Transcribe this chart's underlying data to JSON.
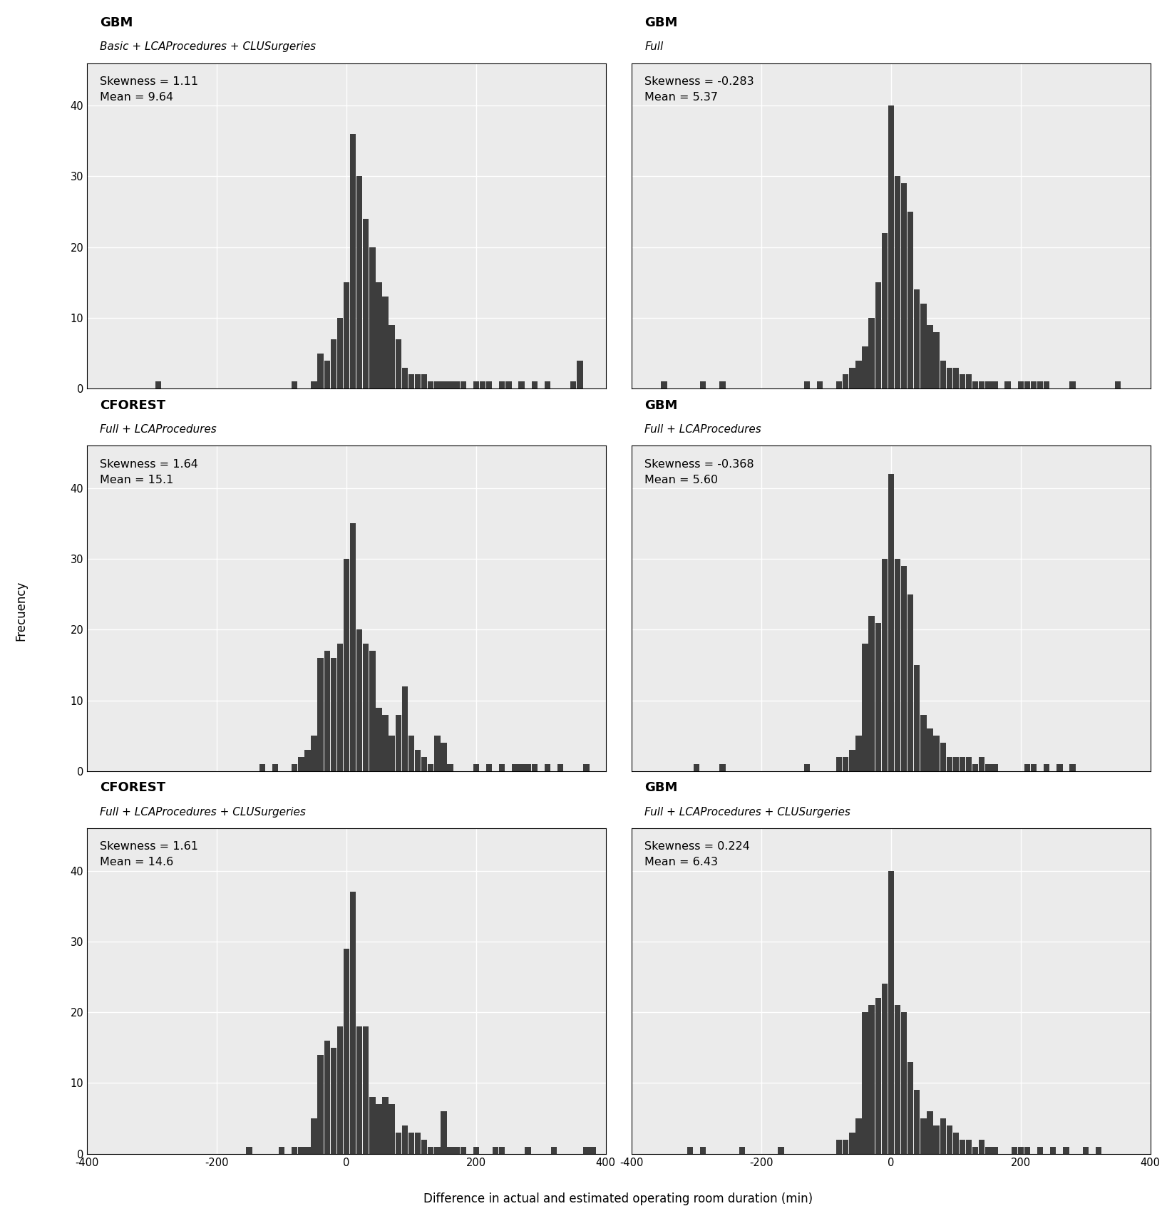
{
  "panels": [
    {
      "title_bold": "GBM",
      "title_italic": "Basic + LCAProcedures + CLUSurgeries",
      "skewness": "1.11",
      "mean": "9.64",
      "row": 0,
      "col": 0,
      "bin_centers": [
        -290,
        -270,
        -230,
        -200,
        -160,
        -130,
        -80,
        -70,
        -60,
        -50,
        -40,
        -30,
        -20,
        -10,
        0,
        10,
        20,
        30,
        40,
        50,
        60,
        70,
        80,
        90,
        100,
        110,
        120,
        130,
        140,
        150,
        160,
        170,
        180,
        200,
        210,
        220,
        240,
        250,
        270,
        290,
        310,
        350,
        360
      ],
      "counts": [
        1,
        0,
        0,
        0,
        0,
        0,
        1,
        0,
        0,
        1,
        5,
        4,
        7,
        10,
        15,
        36,
        30,
        24,
        20,
        15,
        13,
        9,
        7,
        3,
        2,
        2,
        2,
        1,
        1,
        1,
        1,
        1,
        1,
        1,
        1,
        1,
        1,
        1,
        1,
        1,
        1,
        1,
        4
      ]
    },
    {
      "title_bold": "GBM",
      "title_italic": "Full",
      "skewness": "-0.283",
      "mean": "5.37",
      "row": 0,
      "col": 1,
      "bin_centers": [
        -350,
        -290,
        -260,
        -200,
        -180,
        -130,
        -110,
        -100,
        -80,
        -70,
        -60,
        -50,
        -40,
        -30,
        -20,
        -10,
        0,
        10,
        20,
        30,
        40,
        50,
        60,
        70,
        80,
        90,
        100,
        110,
        120,
        130,
        140,
        150,
        160,
        180,
        200,
        210,
        220,
        230,
        240,
        280,
        350
      ],
      "counts": [
        1,
        1,
        1,
        0,
        0,
        1,
        1,
        0,
        1,
        2,
        3,
        4,
        6,
        10,
        15,
        22,
        40,
        30,
        29,
        25,
        14,
        12,
        9,
        8,
        4,
        3,
        3,
        2,
        2,
        1,
        1,
        1,
        1,
        1,
        1,
        1,
        1,
        1,
        1,
        1,
        1
      ]
    },
    {
      "title_bold": "CFOREST",
      "title_italic": "Full + LCAProcedures",
      "skewness": "1.64",
      "mean": "15.1",
      "row": 1,
      "col": 0,
      "bin_centers": [
        -130,
        -110,
        -100,
        -80,
        -70,
        -60,
        -50,
        -40,
        -30,
        -20,
        -10,
        0,
        10,
        20,
        30,
        40,
        50,
        60,
        70,
        80,
        90,
        100,
        110,
        120,
        130,
        140,
        150,
        160,
        200,
        220,
        240,
        260,
        270,
        280,
        290,
        310,
        330,
        370
      ],
      "counts": [
        1,
        1,
        0,
        1,
        2,
        3,
        5,
        16,
        17,
        16,
        18,
        30,
        35,
        20,
        18,
        17,
        9,
        8,
        5,
        8,
        12,
        5,
        3,
        2,
        1,
        5,
        4,
        1,
        1,
        1,
        1,
        1,
        1,
        1,
        1,
        1,
        1,
        1
      ]
    },
    {
      "title_bold": "GBM",
      "title_italic": "Full + LCAProcedures",
      "skewness": "-0.368",
      "mean": "5.60",
      "row": 1,
      "col": 1,
      "bin_centers": [
        -300,
        -260,
        -130,
        -80,
        -70,
        -60,
        -50,
        -40,
        -30,
        -20,
        -10,
        0,
        10,
        20,
        30,
        40,
        50,
        60,
        70,
        80,
        90,
        100,
        110,
        120,
        130,
        140,
        150,
        160,
        210,
        220,
        240,
        260,
        280
      ],
      "counts": [
        1,
        1,
        1,
        2,
        2,
        3,
        5,
        18,
        22,
        21,
        30,
        42,
        30,
        29,
        25,
        15,
        8,
        6,
        5,
        4,
        2,
        2,
        2,
        2,
        1,
        2,
        1,
        1,
        1,
        1,
        1,
        1,
        1
      ]
    },
    {
      "title_bold": "CFOREST",
      "title_italic": "Full + LCAProcedures + CLUSurgeries",
      "skewness": "1.61",
      "mean": "14.6",
      "row": 2,
      "col": 0,
      "bin_centers": [
        -150,
        -100,
        -80,
        -70,
        -60,
        -50,
        -40,
        -30,
        -20,
        -10,
        0,
        10,
        20,
        30,
        40,
        50,
        60,
        70,
        80,
        90,
        100,
        110,
        120,
        130,
        140,
        150,
        160,
        170,
        180,
        200,
        230,
        240,
        280,
        320,
        370,
        380
      ],
      "counts": [
        1,
        1,
        1,
        1,
        1,
        5,
        14,
        16,
        15,
        18,
        29,
        37,
        18,
        18,
        8,
        7,
        8,
        7,
        3,
        4,
        3,
        3,
        2,
        1,
        1,
        6,
        1,
        1,
        1,
        1,
        1,
        1,
        1,
        1,
        1,
        1
      ]
    },
    {
      "title_bold": "GBM",
      "title_italic": "Full + LCAProcedures + CLUSurgeries",
      "skewness": "0.224",
      "mean": "6.43",
      "row": 2,
      "col": 1,
      "bin_centers": [
        -310,
        -290,
        -230,
        -170,
        -80,
        -70,
        -60,
        -50,
        -40,
        -30,
        -20,
        -10,
        0,
        10,
        20,
        30,
        40,
        50,
        60,
        70,
        80,
        90,
        100,
        110,
        120,
        130,
        140,
        150,
        160,
        190,
        200,
        210,
        230,
        250,
        270,
        300,
        320
      ],
      "counts": [
        1,
        1,
        1,
        1,
        2,
        2,
        3,
        5,
        20,
        21,
        22,
        24,
        40,
        21,
        20,
        13,
        9,
        5,
        6,
        4,
        5,
        4,
        3,
        2,
        2,
        1,
        2,
        1,
        1,
        1,
        1,
        1,
        1,
        1,
        1,
        1,
        1
      ]
    }
  ],
  "bar_color": "#3d3d3d",
  "plot_bg": "#ebebeb",
  "header_bg": "#ffffff",
  "grid_color": "#ffffff",
  "ylabel": "Frecuency",
  "xlabel": "Difference in actual and estimated operating room duration (min)",
  "xlim": [
    -400,
    400
  ],
  "ylim": [
    0,
    46
  ],
  "yticks": [
    0,
    10,
    20,
    30,
    40
  ],
  "xticks": [
    -400,
    -200,
    0,
    200,
    400
  ],
  "bin_width": 10,
  "title_bold_fontsize": 13,
  "title_italic_fontsize": 11,
  "annotation_fontsize": 11.5,
  "tick_fontsize": 10.5,
  "label_fontsize": 12
}
